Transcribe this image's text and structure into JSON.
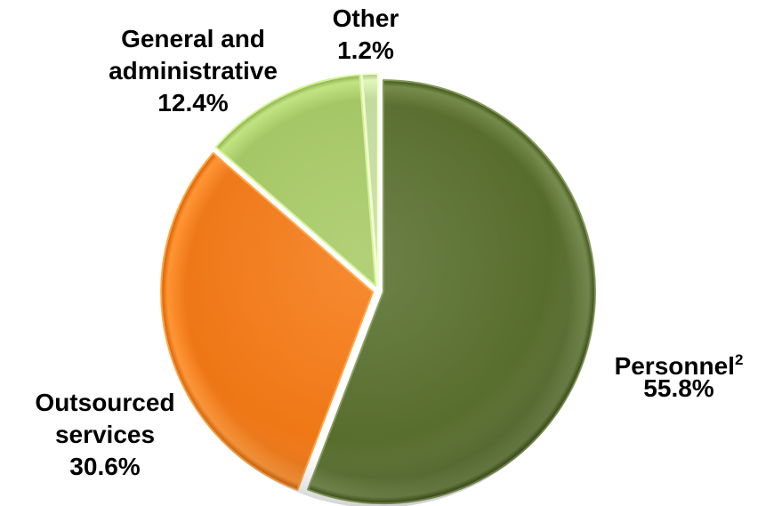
{
  "chart_data": {
    "type": "pie",
    "title": "",
    "slices": [
      {
        "name": "Personnel",
        "superscript": "2",
        "value": 55.8,
        "value_label": "55.8%",
        "color": "#566c2c",
        "label_lines": [
          "Personnel"
        ]
      },
      {
        "name": "Outsourced services",
        "value": 30.6,
        "value_label": "30.6%",
        "color": "#ee7614",
        "label_lines": [
          "Outsourced",
          "services"
        ]
      },
      {
        "name": "General and administrative",
        "value": 12.4,
        "value_label": "12.4%",
        "color": "#a3c562",
        "label_lines": [
          "General and",
          "administrative"
        ]
      },
      {
        "name": "Other",
        "value": 1.2,
        "value_label": "1.2%",
        "color": "#c3d99b",
        "label_lines": [
          "Other"
        ]
      }
    ],
    "start_angle": "12 o'clock",
    "direction": "clockwise",
    "legend": "none"
  }
}
